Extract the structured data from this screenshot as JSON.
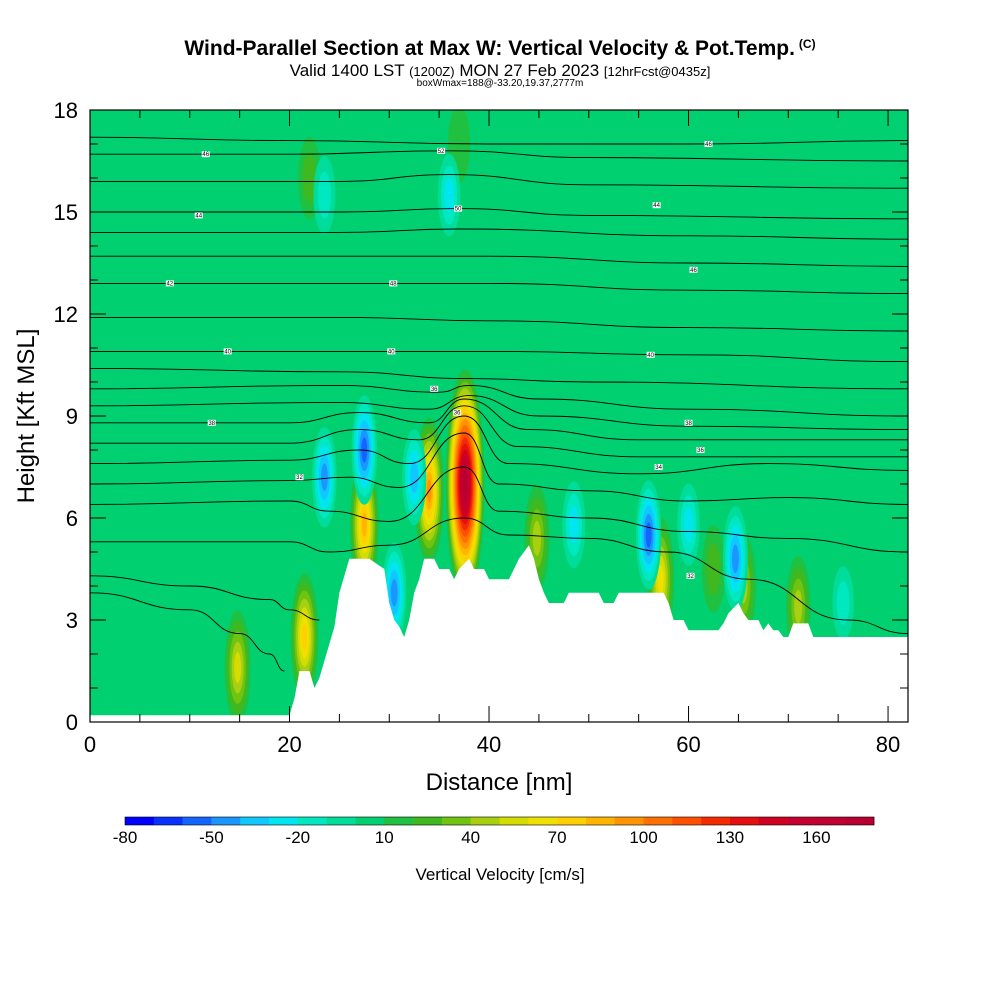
{
  "header": {
    "title": "Wind-Parallel Section at Max W: Vertical Velocity & Pot.Temp.",
    "copyright": "(C)",
    "valid_prefix": "Valid 1400 LST",
    "valid_utc": "(1200Z)",
    "valid_date": "MON 27 Feb 2023",
    "forecast": "[12hrFcst@0435z]",
    "box_info": "boxWmax=188@-33.20,19.37,2777m"
  },
  "chart_data": {
    "type": "heatmap",
    "xlabel": "Distance [nm]",
    "ylabel": "Height [Kft MSL]",
    "xlim": [
      0,
      82
    ],
    "ylim": [
      0,
      18
    ],
    "x_ticks": [
      0,
      20,
      40,
      60,
      80
    ],
    "y_ticks": [
      0,
      3,
      6,
      9,
      12,
      15,
      18
    ],
    "colorbar": {
      "title": "Vertical Velocity [cm/s]",
      "min": -80,
      "max": 180,
      "step": 10,
      "tick_values": [
        -80,
        -50,
        -20,
        10,
        40,
        70,
        100,
        130,
        160
      ],
      "tick_labels": [
        "-80",
        "-50",
        "-20",
        "10",
        "40",
        "70",
        "100",
        "130",
        "160"
      ],
      "colors": [
        "#0000ff",
        "#0a32ff",
        "#1465ff",
        "#1a96ff",
        "#10c8ff",
        "#00e6f0",
        "#00e8c0",
        "#00dc9a",
        "#00d070",
        "#20c040",
        "#40b820",
        "#70c410",
        "#a8d010",
        "#d4dc00",
        "#f0e000",
        "#ffd000",
        "#ffb400",
        "#ff9400",
        "#ff7000",
        "#ff5000",
        "#f42a00",
        "#e40f10",
        "#d00020",
        "#c40030",
        "#c00030",
        "#b80030"
      ]
    },
    "background_value_cm_s": 5,
    "terrain_kft": [
      [
        0,
        0.2
      ],
      [
        20.0,
        0.2
      ],
      [
        20.5,
        0.7
      ],
      [
        21,
        1.5
      ],
      [
        22,
        1.5
      ],
      [
        22.5,
        1.0
      ],
      [
        23,
        1.3
      ],
      [
        23.5,
        1.8
      ],
      [
        24,
        2.3
      ],
      [
        24.5,
        2.8
      ],
      [
        25,
        3.8
      ],
      [
        26,
        4.8
      ],
      [
        28,
        4.8
      ],
      [
        29.5,
        4.5
      ],
      [
        30,
        3.5
      ],
      [
        30.5,
        3.0
      ],
      [
        31,
        2.8
      ],
      [
        31.5,
        2.5
      ],
      [
        32,
        3.0
      ],
      [
        32.5,
        3.8
      ],
      [
        33,
        4.2
      ],
      [
        33.5,
        4.8
      ],
      [
        34.5,
        4.8
      ],
      [
        35,
        4.5
      ],
      [
        36,
        4.5
      ],
      [
        36.5,
        4.2
      ],
      [
        37,
        4.5
      ],
      [
        38,
        4.8
      ],
      [
        38.5,
        4.5
      ],
      [
        39.5,
        4.5
      ],
      [
        40,
        4.2
      ],
      [
        42,
        4.2
      ],
      [
        42.5,
        4.5
      ],
      [
        43,
        4.8
      ],
      [
        44,
        5.2
      ],
      [
        44.5,
        4.8
      ],
      [
        45,
        4.2
      ],
      [
        45.5,
        3.8
      ],
      [
        46,
        3.5
      ],
      [
        47.5,
        3.5
      ],
      [
        48,
        3.8
      ],
      [
        51,
        3.8
      ],
      [
        51.5,
        3.5
      ],
      [
        52.5,
        3.5
      ],
      [
        53,
        3.8
      ],
      [
        57.5,
        3.8
      ],
      [
        58,
        3.5
      ],
      [
        58.5,
        3.0
      ],
      [
        59.5,
        3.0
      ],
      [
        60,
        2.7
      ],
      [
        63,
        2.7
      ],
      [
        63.5,
        2.9
      ],
      [
        64,
        3.2
      ],
      [
        65,
        3.5
      ],
      [
        65.5,
        3.2
      ],
      [
        66,
        3.0
      ],
      [
        67,
        3.0
      ],
      [
        67.5,
        2.7
      ],
      [
        68,
        2.9
      ],
      [
        68.5,
        2.7
      ],
      [
        69,
        2.7
      ],
      [
        69.5,
        2.5
      ],
      [
        70,
        2.5
      ],
      [
        70.5,
        2.9
      ],
      [
        71,
        2.9
      ],
      [
        72,
        2.9
      ],
      [
        72.5,
        2.5
      ],
      [
        82,
        2.5
      ]
    ],
    "updrafts": [
      {
        "x": 37.6,
        "y": 7.0,
        "w_cm_s": 188
      },
      {
        "x": 34.0,
        "y": 6.8,
        "w_cm_s": 95
      },
      {
        "x": 21.5,
        "y": 2.5,
        "w_cm_s": 75
      },
      {
        "x": 27.5,
        "y": 5.8,
        "w_cm_s": 85
      },
      {
        "x": 14.8,
        "y": 1.6,
        "w_cm_s": 60
      },
      {
        "x": 44.8,
        "y": 5.4,
        "w_cm_s": 50
      },
      {
        "x": 57.2,
        "y": 4.2,
        "w_cm_s": 70
      },
      {
        "x": 65.5,
        "y": 4.0,
        "w_cm_s": 50
      },
      {
        "x": 71.0,
        "y": 3.4,
        "w_cm_s": 45
      },
      {
        "x": 62.5,
        "y": 4.5,
        "w_cm_s": 30
      },
      {
        "x": 37.0,
        "y": 17.0,
        "w_cm_s": 20
      },
      {
        "x": 22.0,
        "y": 16.0,
        "w_cm_s": 25
      }
    ],
    "downdrafts": [
      {
        "x": 27.5,
        "y": 8.0,
        "w_cm_s": -55
      },
      {
        "x": 23.5,
        "y": 7.2,
        "w_cm_s": -45
      },
      {
        "x": 30.5,
        "y": 3.8,
        "w_cm_s": -45
      },
      {
        "x": 32.5,
        "y": 7.2,
        "w_cm_s": -40
      },
      {
        "x": 56.0,
        "y": 5.5,
        "w_cm_s": -55
      },
      {
        "x": 64.7,
        "y": 4.8,
        "w_cm_s": -50
      },
      {
        "x": 48.5,
        "y": 5.8,
        "w_cm_s": -30
      },
      {
        "x": 60.0,
        "y": 5.8,
        "w_cm_s": -25
      },
      {
        "x": 36.0,
        "y": 15.5,
        "w_cm_s": -25
      },
      {
        "x": 23.5,
        "y": 15.5,
        "w_cm_s": -20
      },
      {
        "x": 75.5,
        "y": 3.5,
        "w_cm_s": -15
      }
    ],
    "theta_contours_kft": [
      [
        [
          0,
          17.2
        ],
        [
          20,
          17.1
        ],
        [
          40,
          17.0
        ],
        [
          60,
          17.0
        ],
        [
          82,
          17.1
        ]
      ],
      [
        [
          0,
          16.7
        ],
        [
          20,
          16.7
        ],
        [
          36,
          16.8
        ],
        [
          50,
          16.6
        ],
        [
          82,
          16.5
        ]
      ],
      [
        [
          0,
          15.9
        ],
        [
          25,
          15.9
        ],
        [
          36,
          16.1
        ],
        [
          50,
          15.8
        ],
        [
          82,
          15.7
        ]
      ],
      [
        [
          0,
          15.0
        ],
        [
          25,
          15.0
        ],
        [
          37,
          15.1
        ],
        [
          50,
          14.9
        ],
        [
          82,
          14.8
        ]
      ],
      [
        [
          0,
          14.4
        ],
        [
          25,
          14.4
        ],
        [
          37,
          14.5
        ],
        [
          60,
          14.3
        ],
        [
          82,
          14.2
        ]
      ],
      [
        [
          0,
          13.7
        ],
        [
          25,
          13.7
        ],
        [
          40,
          13.7
        ],
        [
          60,
          13.5
        ],
        [
          82,
          13.4
        ]
      ],
      [
        [
          0,
          12.9
        ],
        [
          25,
          12.9
        ],
        [
          40,
          12.9
        ],
        [
          60,
          12.7
        ],
        [
          82,
          12.6
        ]
      ],
      [
        [
          0,
          11.9
        ],
        [
          25,
          11.9
        ],
        [
          40,
          11.8
        ],
        [
          60,
          11.6
        ],
        [
          82,
          11.5
        ]
      ],
      [
        [
          0,
          10.9
        ],
        [
          25,
          10.9
        ],
        [
          40,
          10.9
        ],
        [
          60,
          10.8
        ],
        [
          82,
          10.6
        ]
      ],
      [
        [
          0,
          10.4
        ],
        [
          25,
          10.3
        ],
        [
          38,
          10.1
        ],
        [
          50,
          10.0
        ],
        [
          82,
          9.8
        ]
      ],
      [
        [
          0,
          9.8
        ],
        [
          25,
          9.9
        ],
        [
          35,
          9.7
        ],
        [
          38,
          9.9
        ],
        [
          45,
          9.5
        ],
        [
          60,
          9.2
        ],
        [
          82,
          9.0
        ]
      ],
      [
        [
          0,
          9.3
        ],
        [
          25,
          9.4
        ],
        [
          34,
          9.2
        ],
        [
          38,
          9.6
        ],
        [
          45,
          9.0
        ],
        [
          60,
          8.7
        ],
        [
          82,
          8.6
        ]
      ],
      [
        [
          0,
          8.8
        ],
        [
          20,
          8.8
        ],
        [
          27,
          9.1
        ],
        [
          34,
          8.8
        ],
        [
          37.5,
          9.5
        ],
        [
          44,
          8.6
        ],
        [
          55,
          8.3
        ],
        [
          82,
          8.3
        ]
      ],
      [
        [
          0,
          8.2
        ],
        [
          20,
          8.2
        ],
        [
          27,
          8.6
        ],
        [
          33,
          8.3
        ],
        [
          37.5,
          9.3
        ],
        [
          43,
          8.1
        ],
        [
          55,
          7.8
        ],
        [
          82,
          7.8
        ]
      ],
      [
        [
          0,
          7.6
        ],
        [
          20,
          7.7
        ],
        [
          27,
          8.0
        ],
        [
          32,
          7.6
        ],
        [
          37.5,
          9.0
        ],
        [
          42,
          7.6
        ],
        [
          55,
          7.3
        ],
        [
          68,
          7.6
        ],
        [
          82,
          7.4
        ]
      ],
      [
        [
          0,
          7.0
        ],
        [
          20,
          7.1
        ],
        [
          26,
          7.2
        ],
        [
          31,
          6.9
        ],
        [
          37.5,
          8.5
        ],
        [
          41,
          7.0
        ],
        [
          50,
          6.8
        ],
        [
          60,
          6.5
        ],
        [
          70,
          6.6
        ],
        [
          82,
          6.4
        ]
      ],
      [
        [
          0,
          6.4
        ],
        [
          20,
          6.5
        ],
        [
          24,
          6.2
        ],
        [
          30,
          5.9
        ],
        [
          37.5,
          7.5
        ],
        [
          41,
          6.2
        ],
        [
          50,
          6.0
        ],
        [
          60,
          5.6
        ],
        [
          70,
          5.4
        ],
        [
          82,
          5.0
        ]
      ],
      [
        [
          0,
          5.3
        ],
        [
          20,
          5.3
        ],
        [
          24,
          5.0
        ],
        [
          30,
          5.2
        ],
        [
          37.5,
          6.0
        ],
        [
          42,
          5.5
        ],
        [
          50,
          5.4
        ],
        [
          58,
          5.0
        ],
        [
          66,
          4.2
        ],
        [
          76,
          3.0
        ],
        [
          82,
          2.6
        ]
      ],
      [
        [
          0,
          4.3
        ],
        [
          10,
          4.0
        ],
        [
          18,
          3.6
        ],
        [
          20,
          3.3
        ],
        [
          23,
          3.0
        ]
      ],
      [
        [
          0,
          3.8
        ],
        [
          10,
          3.3
        ],
        [
          15,
          2.6
        ],
        [
          18,
          2.0
        ],
        [
          19.5,
          1.5
        ]
      ]
    ],
    "theta_labels": [
      {
        "x": 11.6,
        "y": 16.7,
        "text": "46"
      },
      {
        "x": 10.9,
        "y": 14.9,
        "text": "44"
      },
      {
        "x": 8.0,
        "y": 12.9,
        "text": "42"
      },
      {
        "x": 13.8,
        "y": 10.9,
        "text": "40"
      },
      {
        "x": 12.2,
        "y": 8.8,
        "text": "38"
      },
      {
        "x": 35.2,
        "y": 16.8,
        "text": "52"
      },
      {
        "x": 36.9,
        "y": 15.1,
        "text": "50"
      },
      {
        "x": 30.4,
        "y": 12.9,
        "text": "48"
      },
      {
        "x": 30.2,
        "y": 10.9,
        "text": "40"
      },
      {
        "x": 34.5,
        "y": 9.8,
        "text": "36"
      },
      {
        "x": 36.8,
        "y": 9.1,
        "text": "36"
      },
      {
        "x": 21.0,
        "y": 7.2,
        "text": "32"
      },
      {
        "x": 62.0,
        "y": 17.0,
        "text": "46"
      },
      {
        "x": 56.8,
        "y": 15.2,
        "text": "44"
      },
      {
        "x": 60.5,
        "y": 13.3,
        "text": "46"
      },
      {
        "x": 56.2,
        "y": 10.8,
        "text": "40"
      },
      {
        "x": 60.0,
        "y": 8.8,
        "text": "38"
      },
      {
        "x": 61.2,
        "y": 8.0,
        "text": "36"
      },
      {
        "x": 57.0,
        "y": 7.5,
        "text": "34"
      },
      {
        "x": 60.2,
        "y": 4.3,
        "text": "32"
      }
    ]
  }
}
